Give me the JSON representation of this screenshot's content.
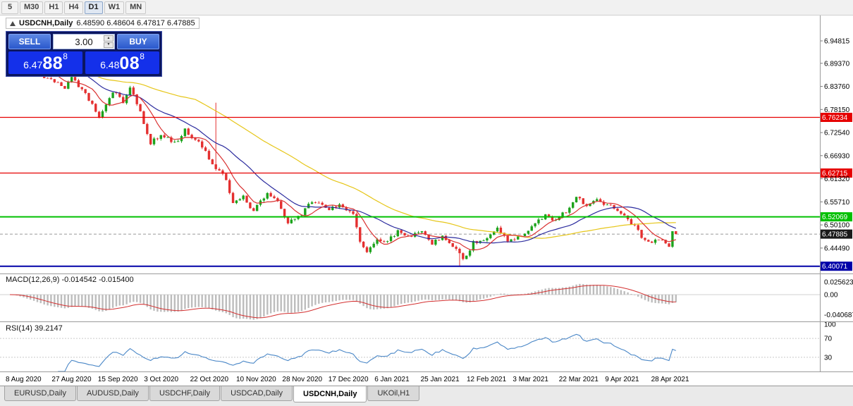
{
  "toolbar": {
    "periods": [
      "5",
      "M30",
      "H1",
      "H4",
      "D1",
      "W1",
      "MN"
    ],
    "active": "D1"
  },
  "chart": {
    "title": "USDCNH,Daily",
    "ohlc_text": "6.48590 6.48604 6.47817 6.47885"
  },
  "trade_panel": {
    "sell_label": "SELL",
    "buy_label": "BUY",
    "volume": "3.00",
    "sell_price": {
      "big": "6.47",
      "pips": "88",
      "pip_sup": "8"
    },
    "buy_price": {
      "big": "6.48",
      "pips": "08",
      "pip_sup": "8"
    }
  },
  "indicator_labels": {
    "macd": "MACD(12,26,9) -0.014542 -0.015400",
    "rsi": "RSI(14) 39.2147"
  },
  "tabs": {
    "items": [
      "EURUSD,Daily",
      "AUDUSD,Daily",
      "USDCHF,Daily",
      "USDCAD,Daily",
      "USDCNH,Daily",
      "UKOil,H1"
    ],
    "active": "USDCNH,Daily"
  },
  "chart_data": {
    "type": "candlestick",
    "symbol": "USDCNH",
    "timeframe": "Daily",
    "last_quote": {
      "open": 6.4859,
      "high": 6.48604,
      "low": 6.47817,
      "close": 6.47885
    },
    "bid": "6.47888",
    "ask": "6.48088",
    "y_axis_ticks": [
      "6.94815",
      "6.89370",
      "6.83760",
      "6.78150",
      "6.72540",
      "6.66930",
      "6.61320",
      "6.55710",
      "6.50100",
      "6.44490"
    ],
    "x_axis_ticks": [
      "8 Aug 2020",
      "27 Aug 2020",
      "15 Sep 2020",
      "3 Oct 2020",
      "22 Oct 2020",
      "10 Nov 2020",
      "28 Nov 2020",
      "17 Dec 2020",
      "6 Jan 2021",
      "25 Jan 2021",
      "12 Feb 2021",
      "3 Mar 2021",
      "22 Mar 2021",
      "9 Apr 2021",
      "28 Apr 2021"
    ],
    "levels": [
      {
        "value": 6.76234,
        "label": "6.76234",
        "color": "#e60000",
        "width": 1.2
      },
      {
        "value": 6.62715,
        "label": "6.62715",
        "color": "#e60000",
        "width": 1.2
      },
      {
        "value": 6.52069,
        "label": "6.52069",
        "color": "#00c000",
        "width": 2
      },
      {
        "value": 6.40071,
        "label": "6.40071",
        "color": "#0000a8",
        "width": 2
      }
    ],
    "current_price": {
      "value": 6.47885,
      "label": "6.47885",
      "label_bg": "#1a1a1a"
    },
    "candle_count": 195,
    "colors": {
      "up": "#1ca31c",
      "down": "#e43030",
      "macd_hist": "#bdbdbd",
      "macd_signal": "#d32f2f",
      "rsi_line": "#4a87c7",
      "ma_fast": "#d93030",
      "ma_mid": "#2b2b9e",
      "ma_slow": "#e6c619"
    },
    "price_anchors": [
      [
        0,
        6.952
      ],
      [
        5,
        6.901
      ],
      [
        10,
        6.862
      ],
      [
        13,
        6.846
      ],
      [
        16,
        6.836
      ],
      [
        18,
        6.857
      ],
      [
        21,
        6.83
      ],
      [
        24,
        6.79
      ],
      [
        26,
        6.764
      ],
      [
        30,
        6.827
      ],
      [
        33,
        6.8
      ],
      [
        35,
        6.837
      ],
      [
        38,
        6.776
      ],
      [
        41,
        6.702
      ],
      [
        44,
        6.722
      ],
      [
        48,
        6.7
      ],
      [
        51,
        6.73
      ],
      [
        56,
        6.693
      ],
      [
        59,
        6.646
      ],
      [
        61,
        6.636
      ],
      [
        63,
        6.61
      ],
      [
        65,
        6.554
      ],
      [
        68,
        6.572
      ],
      [
        71,
        6.533
      ],
      [
        75,
        6.582
      ],
      [
        78,
        6.557
      ],
      [
        81,
        6.504
      ],
      [
        84,
        6.52
      ],
      [
        88,
        6.56
      ],
      [
        93,
        6.541
      ],
      [
        96,
        6.552
      ],
      [
        100,
        6.531
      ],
      [
        102,
        6.463
      ],
      [
        104,
        6.433
      ],
      [
        107,
        6.468
      ],
      [
        110,
        6.458
      ],
      [
        113,
        6.489
      ],
      [
        116,
        6.47
      ],
      [
        120,
        6.487
      ],
      [
        123,
        6.458
      ],
      [
        126,
        6.471
      ],
      [
        130,
        6.441
      ],
      [
        132,
        6.413
      ],
      [
        135,
        6.458
      ],
      [
        139,
        6.471
      ],
      [
        142,
        6.489
      ],
      [
        145,
        6.463
      ],
      [
        149,
        6.477
      ],
      [
        152,
        6.497
      ],
      [
        156,
        6.527
      ],
      [
        159,
        6.512
      ],
      [
        163,
        6.544
      ],
      [
        165,
        6.571
      ],
      [
        168,
        6.549
      ],
      [
        171,
        6.564
      ],
      [
        173,
        6.552
      ],
      [
        176,
        6.546
      ],
      [
        179,
        6.521
      ],
      [
        182,
        6.499
      ],
      [
        184,
        6.473
      ],
      [
        186,
        6.456
      ],
      [
        189,
        6.464
      ],
      [
        192,
        6.452
      ],
      [
        194,
        6.479
      ]
    ],
    "spikes": [
      {
        "index": 60,
        "type": "high",
        "price": 6.798
      },
      {
        "index": 131,
        "type": "low",
        "price": 6.401
      }
    ],
    "indicators": {
      "macd": {
        "params": [
          12,
          26,
          9
        ],
        "main": -0.014542,
        "signal": -0.0154,
        "axis_ticks": [
          {
            "label": "0.025623",
            "value": 0.025623
          },
          {
            "label": "0.00",
            "value": 0
          },
          {
            "label": "-0.040687",
            "value": -0.040687
          }
        ]
      },
      "rsi": {
        "period": 14,
        "value": 39.2147,
        "levels": [
          70,
          30
        ],
        "axis_ticks": [
          {
            "label": "100",
            "value": 100
          },
          {
            "label": "70",
            "value": 70
          },
          {
            "label": "30",
            "value": 30
          }
        ]
      },
      "moving_averages": [
        {
          "period": 55,
          "color_key": "ma_slow"
        },
        {
          "period": 21,
          "color_key": "ma_mid"
        },
        {
          "period": 8,
          "color_key": "ma_fast"
        }
      ]
    }
  }
}
